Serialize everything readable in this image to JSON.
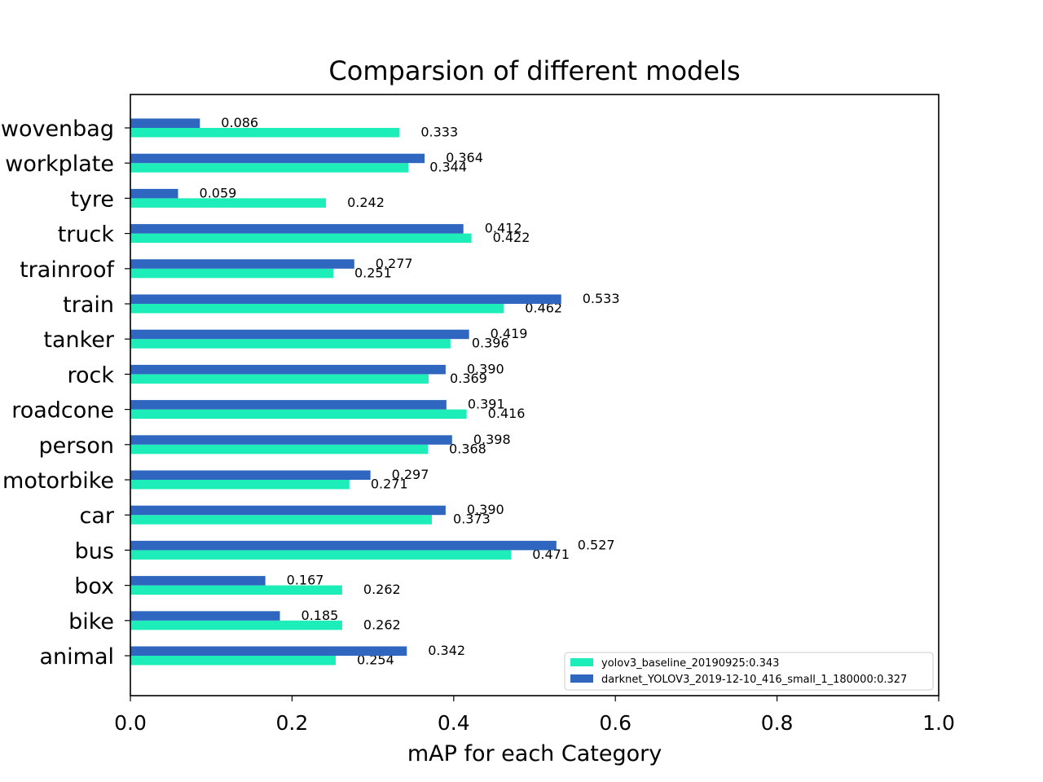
{
  "chart_data": {
    "type": "bar",
    "orientation": "horizontal",
    "title": "Comparsion of different models",
    "xlabel": "mAP for each Category",
    "ylabel": "",
    "xlim": [
      0,
      1.0
    ],
    "xticks": [
      "0.0",
      "0.2",
      "0.4",
      "0.6",
      "0.8",
      "1.0"
    ],
    "grid": false,
    "legend_position": "bottom-right",
    "categories": [
      "animal",
      "bike",
      "box",
      "bus",
      "car",
      "motorbike",
      "person",
      "roadcone",
      "rock",
      "tanker",
      "train",
      "trainroof",
      "truck",
      "tyre",
      "workplate",
      "wovenbag"
    ],
    "series": [
      {
        "name": "yolov3_baseline_20190925:0.343",
        "color": "#1ded b9",
        "values": [
          0.254,
          0.262,
          0.262,
          0.471,
          0.373,
          0.271,
          0.368,
          0.416,
          0.369,
          0.396,
          0.462,
          0.251,
          0.422,
          0.242,
          0.344,
          0.333
        ],
        "labels": [
          "0.254",
          "0.262",
          "0.262",
          "0.471",
          "0.373",
          "0.271",
          "0.368",
          "0.416",
          "0.369",
          "0.396",
          "0.462",
          "0.251",
          "0.422",
          "0.242",
          "0.344",
          "0.333"
        ]
      },
      {
        "name": "darknet_YOLOV3_2019-12-10_416_small_1_180000:0.327",
        "color": "#2f66c0",
        "values": [
          0.342,
          0.185,
          0.167,
          0.527,
          0.39,
          0.297,
          0.398,
          0.391,
          0.39,
          0.419,
          0.533,
          0.277,
          0.412,
          0.059,
          0.364,
          0.086
        ],
        "labels": [
          "0.342",
          "0.185",
          "0.167",
          "0.527",
          "0.390",
          "0.297",
          "0.398",
          "0.391",
          "0.390",
          "0.419",
          "0.533",
          "0.277",
          "0.412",
          "0.059",
          "0.364",
          "0.086"
        ]
      }
    ]
  }
}
